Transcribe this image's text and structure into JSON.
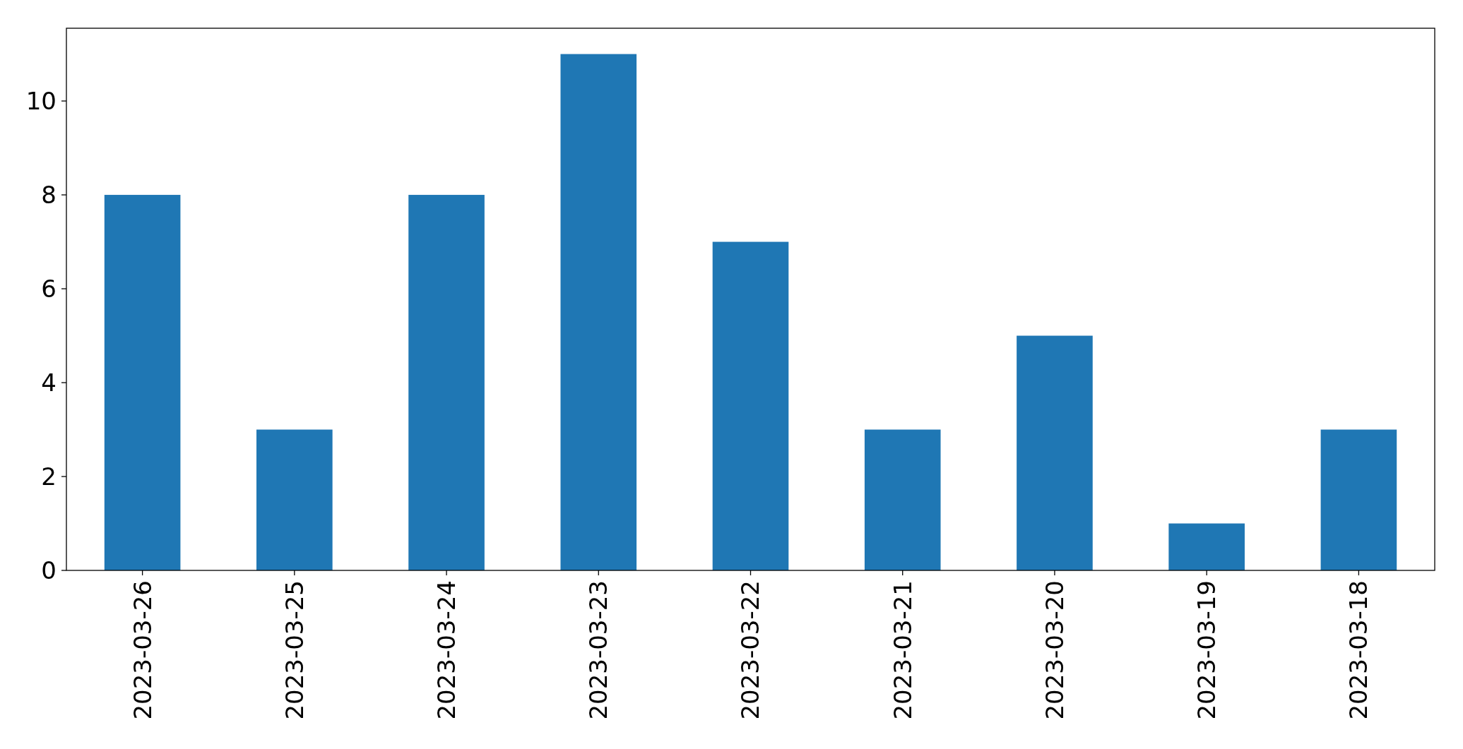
{
  "chart_data": {
    "type": "bar",
    "categories": [
      "2023-03-26",
      "2023-03-25",
      "2023-03-24",
      "2023-03-23",
      "2023-03-22",
      "2023-03-21",
      "2023-03-20",
      "2023-03-19",
      "2023-03-18"
    ],
    "values": [
      8,
      3,
      8,
      11,
      7,
      3,
      5,
      1,
      3
    ],
    "color": "#1f77b4",
    "ylim": [
      0,
      11.55
    ],
    "yticks": [
      0,
      2,
      4,
      6,
      8,
      10
    ]
  }
}
